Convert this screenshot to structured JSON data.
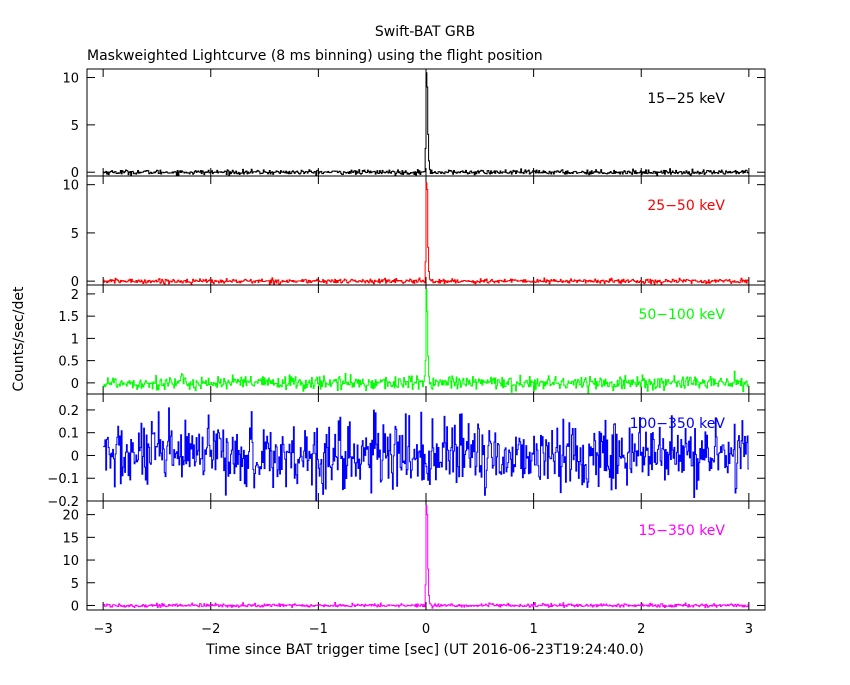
{
  "title": "Swift-BAT GRB",
  "subtitle": "Maskweighted Lightcurve (8 ms binning) using the flight position",
  "chart_data": {
    "type": "line",
    "xlabel": "Time since BAT trigger time [sec] (UT 2016-06-23T19:24:40.0)",
    "ylabel": "Counts/sec/det",
    "xlim": [
      -3.15,
      3.15
    ],
    "data_xrange": [
      -3.0,
      3.0
    ],
    "bin_size_sec": 0.008,
    "x_ticks": [
      -3,
      -2,
      -1,
      0,
      1,
      2,
      3
    ],
    "x_tick_labels": [
      "−3",
      "−2",
      "−1",
      "0",
      "1",
      "2",
      "3"
    ],
    "grid": false,
    "panels": [
      {
        "label": "15−25 keV",
        "color": "#000000",
        "ylim": [
          -0.4,
          10.9
        ],
        "y_ticks": [
          0,
          5,
          10
        ],
        "y_tick_labels": [
          "0",
          "5",
          "10"
        ],
        "baseline": 0.0,
        "noise_rms": 0.12,
        "burst": {
          "x": [
            -0.008,
            0.0,
            0.008,
            0.016,
            0.024,
            0.032
          ],
          "y": [
            2.5,
            10.5,
            9.0,
            4.0,
            1.2,
            0.3
          ]
        }
      },
      {
        "label": "25−50 keV",
        "color": "#ff0000",
        "ylim": [
          -0.4,
          10.9
        ],
        "y_ticks": [
          0,
          5,
          10
        ],
        "y_tick_labels": [
          "0",
          "5",
          "10"
        ],
        "baseline": 0.0,
        "noise_rms": 0.12,
        "burst": {
          "x": [
            -0.008,
            0.0,
            0.008,
            0.016,
            0.024,
            0.032
          ],
          "y": [
            2.0,
            10.2,
            9.5,
            3.5,
            1.0,
            0.2
          ]
        }
      },
      {
        "label": "50−100 keV",
        "color": "#00ff00",
        "ylim": [
          -0.25,
          2.2
        ],
        "y_ticks": [
          0,
          0.5,
          1,
          1.5,
          2
        ],
        "y_tick_labels": [
          "0",
          "0.5",
          "1",
          "1.5",
          "2"
        ],
        "baseline": 0.0,
        "noise_rms": 0.08,
        "burst": {
          "x": [
            -0.008,
            0.0,
            0.008,
            0.016,
            0.024
          ],
          "y": [
            0.5,
            2.1,
            1.6,
            0.6,
            0.15
          ]
        }
      },
      {
        "label": "100−350 keV",
        "color": "#0000ff",
        "ylim": [
          -0.2,
          0.27
        ],
        "y_ticks": [
          -0.2,
          -0.1,
          0,
          0.1,
          0.2
        ],
        "y_tick_labels": [
          "−0.2",
          "−0.1",
          "0",
          "0.1",
          "0.2"
        ],
        "baseline": 0.0,
        "noise_rms": 0.075,
        "burst": null
      },
      {
        "label": "15−350 keV",
        "color": "#ff00ff",
        "ylim": [
          -1.0,
          23.0
        ],
        "y_ticks": [
          0,
          5,
          10,
          15,
          20
        ],
        "y_tick_labels": [
          "0",
          "5",
          "10",
          "15",
          "20"
        ],
        "baseline": 0.0,
        "noise_rms": 0.2,
        "burst": {
          "x": [
            -0.008,
            0.0,
            0.008,
            0.016,
            0.024,
            0.032
          ],
          "y": [
            4.5,
            22.0,
            20.0,
            8.0,
            2.2,
            0.5
          ]
        }
      }
    ]
  }
}
